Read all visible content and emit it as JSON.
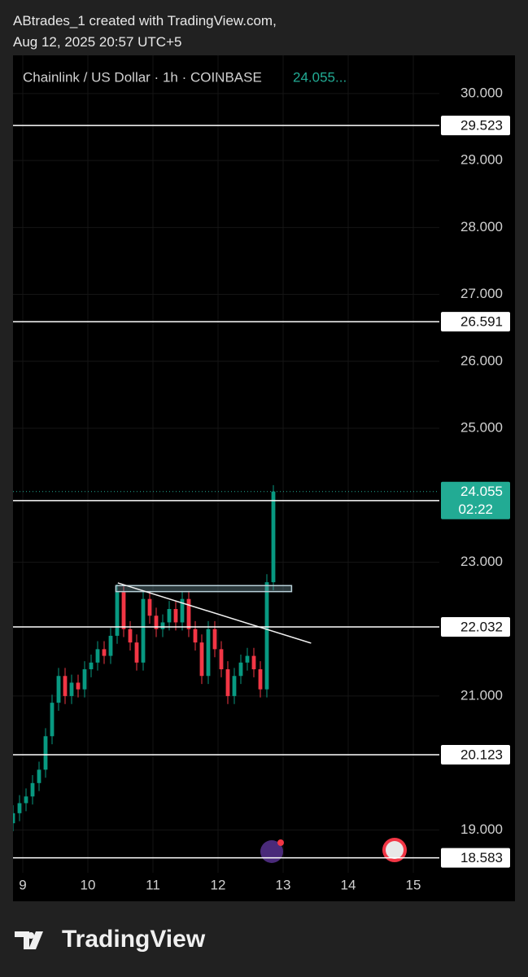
{
  "header": {
    "line1": "ABtrades_1 created with TradingView.com,",
    "line2": "Aug 12, 2025 20:57 UTC+5"
  },
  "chart_data": {
    "type": "candlestick",
    "symbol_title": "Chainlink / US Dollar · 1h · COINBASE",
    "last_value_text": "24.055...",
    "up_color": "#089981",
    "down_color": "#f23645",
    "xlim": [
      8.85,
      15.4
    ],
    "xticks": [
      9,
      10,
      11,
      12,
      13,
      14,
      15
    ],
    "ylim": [
      18.36,
      30.57
    ],
    "yticks": [
      {
        "value": 19,
        "label": "19.000"
      },
      {
        "value": 21,
        "label": "21.000"
      },
      {
        "value": 23,
        "label": "23.000"
      },
      {
        "value": 25,
        "label": "25.000"
      },
      {
        "value": 26,
        "label": "26.000"
      },
      {
        "value": 27,
        "label": "27.000"
      },
      {
        "value": 28,
        "label": "28.000"
      },
      {
        "value": 29,
        "label": "29.000"
      },
      {
        "value": 30,
        "label": "30.000"
      }
    ],
    "candles": {
      "x": [
        8.85,
        8.95,
        9.05,
        9.15,
        9.25,
        9.35,
        9.45,
        9.55,
        9.65,
        9.75,
        9.85,
        9.95,
        10.05,
        10.15,
        10.25,
        10.35,
        10.45,
        10.55,
        10.65,
        10.75,
        10.85,
        10.95,
        11.05,
        11.15,
        11.25,
        11.35,
        11.45,
        11.55,
        11.65,
        11.75,
        11.85,
        11.95,
        12.05,
        12.15,
        12.25,
        12.35,
        12.45,
        12.55,
        12.65,
        12.75,
        12.85
      ],
      "open": [
        19.1,
        19.25,
        19.4,
        19.5,
        19.7,
        19.9,
        20.4,
        20.9,
        21.3,
        21.0,
        21.2,
        21.1,
        21.4,
        21.5,
        21.7,
        21.6,
        21.9,
        22.55,
        22.0,
        21.8,
        21.5,
        22.45,
        22.2,
        22.0,
        22.1,
        22.3,
        22.1,
        22.45,
        22.0,
        21.8,
        21.3,
        22.0,
        21.7,
        21.4,
        21.0,
        21.3,
        21.5,
        21.6,
        21.4,
        21.1,
        22.7
      ],
      "high": [
        19.37,
        19.52,
        19.62,
        19.82,
        20.02,
        20.52,
        21.02,
        21.42,
        21.42,
        21.32,
        21.32,
        21.52,
        21.62,
        21.82,
        21.82,
        22.02,
        22.67,
        22.67,
        22.12,
        21.92,
        22.57,
        22.57,
        22.32,
        22.22,
        22.42,
        22.42,
        22.57,
        22.57,
        22.12,
        21.92,
        22.12,
        22.12,
        21.82,
        21.52,
        21.42,
        21.62,
        21.72,
        21.72,
        21.52,
        22.82,
        24.15
      ],
      "low": [
        18.98,
        19.13,
        19.28,
        19.38,
        19.58,
        19.78,
        20.28,
        20.78,
        20.88,
        20.88,
        20.98,
        20.98,
        21.28,
        21.38,
        21.48,
        21.48,
        21.78,
        21.88,
        21.68,
        21.38,
        21.38,
        22.08,
        21.88,
        21.88,
        21.98,
        21.98,
        21.98,
        21.88,
        21.68,
        21.18,
        21.18,
        21.58,
        21.28,
        20.88,
        20.88,
        21.18,
        21.38,
        21.28,
        20.98,
        20.98,
        22.58
      ],
      "close": [
        19.25,
        19.4,
        19.5,
        19.7,
        19.9,
        20.4,
        20.9,
        21.3,
        21.0,
        21.2,
        21.1,
        21.4,
        21.5,
        21.7,
        21.6,
        21.9,
        22.55,
        22.0,
        21.8,
        21.5,
        22.45,
        22.2,
        22.0,
        22.1,
        22.3,
        22.1,
        22.45,
        22.0,
        21.8,
        21.3,
        22.0,
        21.7,
        21.4,
        21.0,
        21.3,
        21.5,
        21.6,
        21.4,
        21.1,
        22.7,
        24.055
      ]
    },
    "levels": [
      29.523,
      26.591,
      23.919,
      22.032,
      20.123,
      18.583
    ],
    "last_price": {
      "value": 24.055,
      "countdown": "02:22"
    },
    "trendline": {
      "x": [
        10.46,
        13.43
      ],
      "y": [
        22.69,
        21.79
      ]
    },
    "zone": {
      "x": [
        10.43,
        13.13
      ],
      "y": [
        22.56,
        22.65
      ]
    }
  },
  "footer": {
    "brand": "TradingView"
  }
}
